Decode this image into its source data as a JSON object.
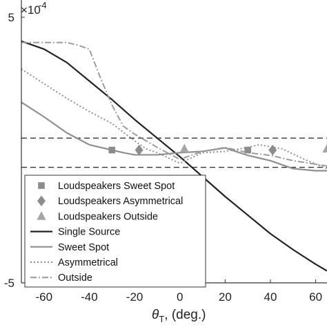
{
  "chart_data": {
    "type": "line",
    "xlabel_symbol": "θ",
    "xlabel_sub": "T",
    "xlabel_unit": ", (deg.)",
    "ylabel": "",
    "exponent_label": "×10",
    "exponent_power": "-4",
    "xlim": [
      -70,
      65
    ],
    "ylim": [
      -5,
      5
    ],
    "xticks": [
      -60,
      -40,
      -20,
      0,
      20,
      40,
      60
    ],
    "xtick_labels": [
      "-60",
      "-40",
      "-20",
      "0",
      "20",
      "40",
      "60"
    ],
    "yticks": [
      -5,
      5
    ],
    "ytick_labels": [
      "-5",
      "5"
    ],
    "grid": false,
    "legend_position": "bottom-left",
    "reference_lines": [
      0.45,
      -0.65
    ],
    "series": [
      {
        "name": "Single Source",
        "style": "solid",
        "color": "#222222",
        "x": [
          -70,
          -60,
          -50,
          -40,
          -30,
          -20,
          -10,
          0,
          10,
          20,
          30,
          40,
          50,
          60,
          65
        ],
        "y": [
          4.1,
          3.8,
          3.3,
          2.6,
          1.9,
          1.15,
          0.45,
          -0.25,
          -1.0,
          -1.75,
          -2.45,
          -3.15,
          -3.75,
          -4.3,
          -4.55
        ]
      },
      {
        "name": "Sweet Spot",
        "style": "solid",
        "color": "#8f8f8f",
        "x": [
          -70,
          -60,
          -50,
          -40,
          -30,
          -25,
          -20,
          -10,
          0,
          10,
          20,
          30,
          40,
          50,
          60,
          65
        ],
        "y": [
          1.8,
          1.25,
          0.65,
          0.2,
          0.0,
          -0.1,
          -0.18,
          -0.18,
          -0.1,
          -0.05,
          0.08,
          -0.2,
          -0.4,
          -0.7,
          -0.78,
          -0.78
        ]
      },
      {
        "name": "Asymmetrical",
        "style": "dotted",
        "color": "#8f8f8f",
        "x": [
          -70,
          -60,
          -50,
          -40,
          -30,
          -20,
          -15,
          -10,
          -5,
          0,
          10,
          20,
          30,
          35,
          45,
          55,
          65
        ],
        "y": [
          3.05,
          2.5,
          1.95,
          1.45,
          1.0,
          0.35,
          0.05,
          -0.1,
          -0.3,
          -0.5,
          -0.1,
          -0.05,
          0.1,
          0.2,
          0.05,
          -0.35,
          -0.7
        ]
      },
      {
        "name": "Outside",
        "style": "dashdot",
        "color": "#9c9c9c",
        "x": [
          -70,
          -60,
          -50,
          -45,
          -40,
          -35,
          -30,
          -25,
          -20,
          -10,
          0,
          10,
          20,
          30,
          40,
          50,
          65
        ],
        "y": [
          4.05,
          4.05,
          4.05,
          3.95,
          3.8,
          2.7,
          1.7,
          0.9,
          0.6,
          0.1,
          -0.35,
          -0.05,
          0.1,
          -0.1,
          -0.2,
          -0.4,
          -0.6
        ]
      }
    ],
    "markers": [
      {
        "name": "Loudspeakers Sweet Spot",
        "shape": "square",
        "color": "#8c8c8c",
        "x": [
          -30,
          30
        ],
        "y": [
          0.0,
          0.0
        ]
      },
      {
        "name": "Loudspeakers Asymmetrical",
        "shape": "diamond",
        "color": "#8c8c8c",
        "x": [
          -18,
          41
        ],
        "y": [
          0.0,
          0.0
        ]
      },
      {
        "name": "Loudspeakers Outside",
        "shape": "triangle",
        "color": "#a5a5a5",
        "x": [
          2,
          65
        ],
        "y": [
          0.05,
          0.05
        ]
      }
    ]
  }
}
